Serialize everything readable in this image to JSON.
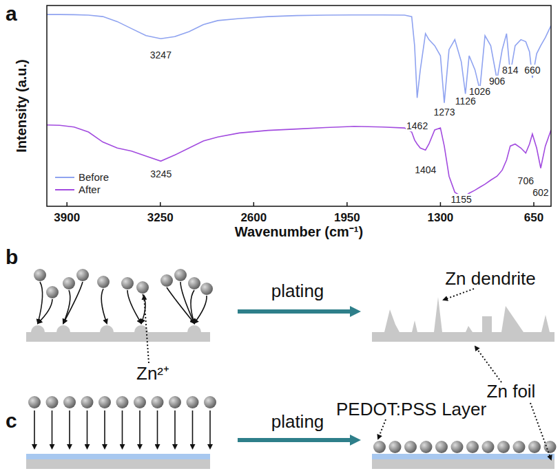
{
  "chart_data": {
    "type": "line",
    "xlabel": "Wavenumber (cm⁻¹)",
    "ylabel": "Intensity (a.u.)",
    "x": [
      4040,
      3950,
      3850,
      3750,
      3650,
      3550,
      3450,
      3350,
      3247,
      3150,
      3050,
      2950,
      2850,
      2700,
      2500,
      2300,
      2100,
      1900,
      1700,
      1550,
      1500,
      1480,
      1462,
      1440,
      1404,
      1380,
      1340,
      1300,
      1273,
      1240,
      1200,
      1155,
      1126,
      1100,
      1060,
      1026,
      990,
      950,
      906,
      870,
      840,
      814,
      780,
      740,
      706,
      680,
      660,
      630,
      602,
      570,
      530
    ],
    "series": [
      {
        "name": "Before",
        "color": "#8fa3f0",
        "values": [
          95.5,
          95.5,
          95.4,
          95.2,
          94.5,
          92,
          88.5,
          85,
          83.5,
          84.5,
          87,
          90.5,
          92.5,
          93.5,
          94.5,
          95,
          95.2,
          95.3,
          95.3,
          95.2,
          94.5,
          80,
          54,
          68,
          86,
          83,
          80,
          75,
          51.5,
          78,
          83,
          72,
          56,
          75,
          68,
          58,
          85,
          80,
          63,
          78,
          86,
          66,
          80,
          83,
          82,
          77,
          64,
          76,
          80,
          84,
          90
        ]
      },
      {
        "name": "After",
        "color": "#a24bdf",
        "values": [
          40.5,
          40.3,
          39.5,
          37,
          32,
          29,
          27.5,
          25,
          22.5,
          25.5,
          29,
          32.5,
          34.5,
          36.5,
          37.8,
          38.5,
          39.2,
          39.8,
          39.5,
          39,
          37,
          33,
          31,
          29,
          28,
          31,
          38,
          39,
          30,
          15,
          7,
          5,
          5.2,
          6.5,
          8,
          9.5,
          11,
          13,
          15,
          18,
          23,
          30,
          31,
          29,
          26.5,
          31,
          36,
          29,
          19,
          30,
          38
        ]
      }
    ],
    "xlim": [
      4040,
      530
    ],
    "xticks": [
      3900,
      3250,
      2600,
      1950,
      1300,
      650
    ],
    "ylim": [
      0,
      100
    ],
    "tick_labels": "x",
    "legend": "lower left",
    "annotations": [
      {
        "text": "3247",
        "x": 3247,
        "y": 75.3
      },
      {
        "text": "1462",
        "x": 1462,
        "y": 40
      },
      {
        "text": "1273",
        "x": 1273,
        "y": 47
      },
      {
        "text": "1126",
        "x": 1126,
        "y": 52.4
      },
      {
        "text": "1026",
        "x": 1026,
        "y": 57.2
      },
      {
        "text": "906",
        "x": 906,
        "y": 62.3
      },
      {
        "text": "814",
        "x": 814,
        "y": 67.8
      },
      {
        "text": "660",
        "x": 660,
        "y": 67.8
      },
      {
        "text": "3245",
        "x": 3245,
        "y": 16.1
      },
      {
        "text": "1404",
        "x": 1404,
        "y": 18.2
      },
      {
        "text": "1155",
        "x": 1155,
        "y": 3.4
      },
      {
        "text": "706",
        "x": 706,
        "y": 12.7
      },
      {
        "text": "602",
        "x": 602,
        "y": 7
      }
    ]
  },
  "figure": {
    "panel_letters": [
      "a",
      "b",
      "c"
    ],
    "arrow_label": "plating",
    "labels": {
      "dendrite": "Zn dendrite",
      "ion": "Zn²⁺",
      "foil": "Zn foil",
      "layer": "PEDOT:PSS Layer"
    }
  }
}
